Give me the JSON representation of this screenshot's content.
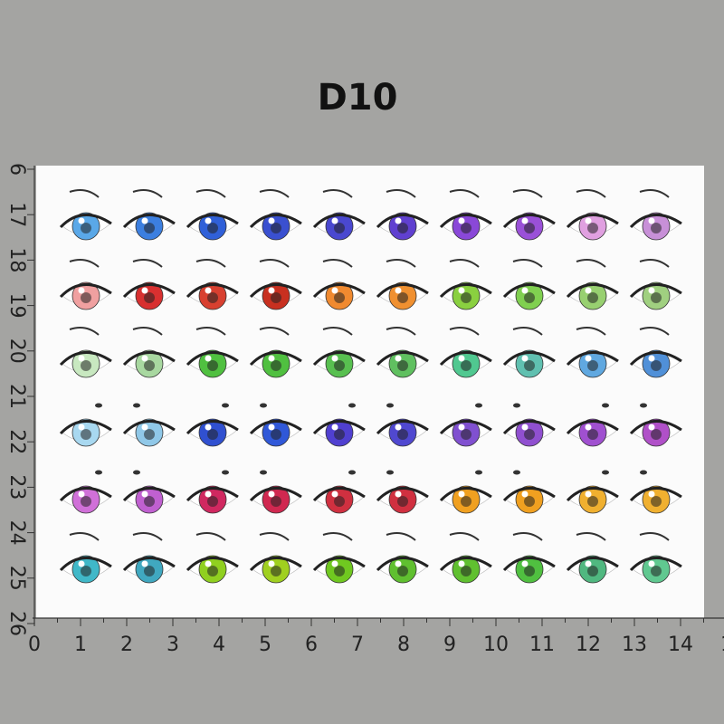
{
  "title": "D10",
  "ruler": {
    "bottom": [
      "0",
      "1",
      "2",
      "3",
      "4",
      "5",
      "6",
      "7",
      "8",
      "9",
      "10",
      "11",
      "12",
      "13",
      "14",
      "1"
    ],
    "left": [
      "6",
      "17",
      "18",
      "19",
      "20",
      "21",
      "22",
      "23",
      "24",
      "25",
      "26"
    ]
  }
}
